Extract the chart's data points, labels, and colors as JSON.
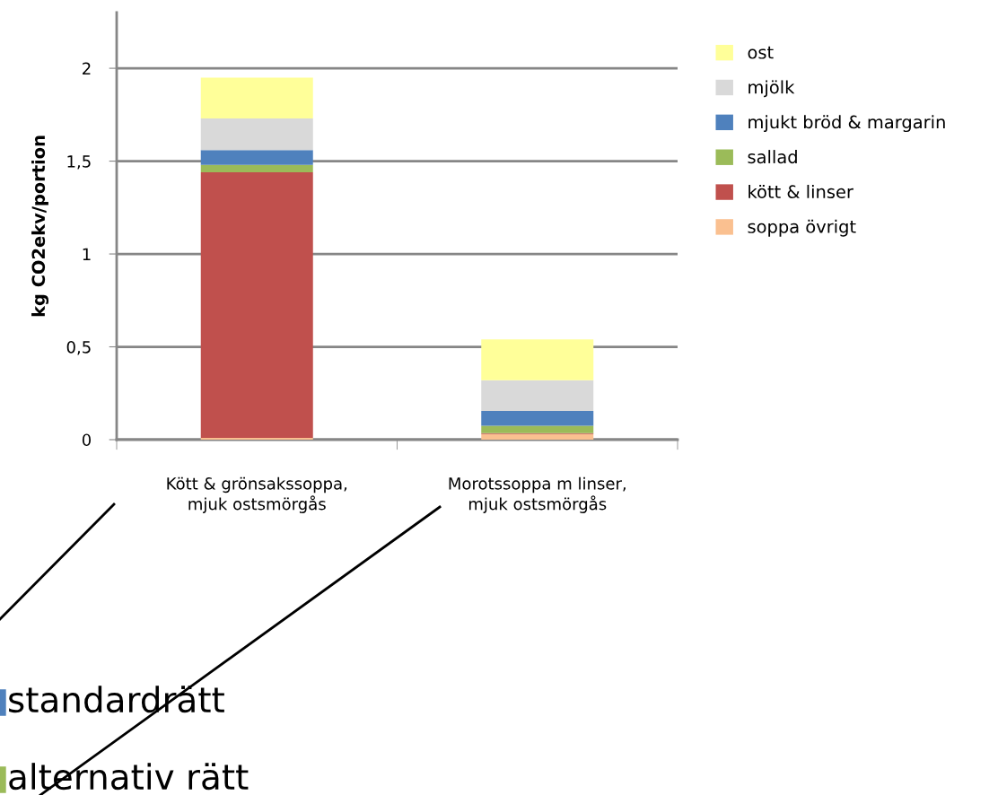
{
  "chart_data": {
    "type": "bar",
    "stacked": true,
    "ylabel": "kg CO2ekv/portion",
    "categories": [
      "Kött & grönsakssoppa,\nmjuk ostsmörgås",
      "Morotssoppa m linser,\nmjuk ostsmörgås"
    ],
    "series": [
      {
        "name": "soppa övrigt",
        "color": "#fac090",
        "values": [
          0.01,
          0.03
        ]
      },
      {
        "name": "kött & linser",
        "color": "#c0504d",
        "values": [
          1.43,
          0.005
        ]
      },
      {
        "name": "sallad",
        "color": "#9bbb59",
        "values": [
          0.04,
          0.04
        ]
      },
      {
        "name": "mjukt bröd & margarin",
        "color": "#4f81bd",
        "values": [
          0.08,
          0.08
        ]
      },
      {
        "name": "mjölk",
        "color": "#d9d9d9",
        "values": [
          0.17,
          0.165
        ]
      },
      {
        "name": "ost",
        "color": "#ffff99",
        "values": [
          0.22,
          0.22
        ]
      }
    ],
    "ylim": [
      0,
      2.3
    ],
    "yticks": [
      {
        "value": 0,
        "label": "0"
      },
      {
        "value": 0.5,
        "label": "0,5"
      },
      {
        "value": 1,
        "label": "1"
      },
      {
        "value": 1.5,
        "label": "1,5"
      },
      {
        "value": 2,
        "label": "2"
      }
    ],
    "grid": "y",
    "legend": "right",
    "annotations": [
      "standardrätt",
      "alternativ rätt"
    ]
  }
}
